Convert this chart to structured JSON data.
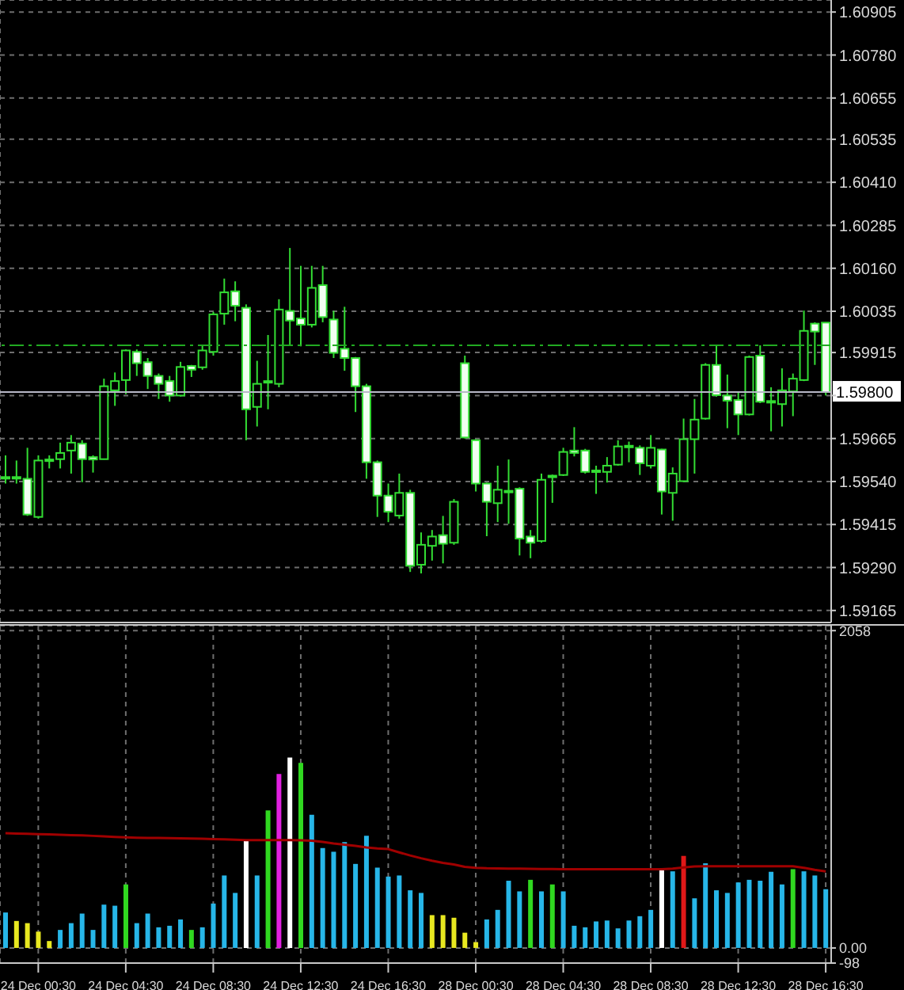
{
  "chart_data": [
    {
      "type": "candlestick",
      "color": "#33dd33",
      "grid": true,
      "tick_labels": "y",
      "categories": [
        null,
        null,
        null,
        null,
        null,
        null,
        null,
        null,
        null,
        null,
        null,
        null,
        null,
        null,
        null,
        null,
        null,
        null,
        null,
        null,
        null,
        null,
        null,
        null,
        null,
        null,
        null,
        null,
        null,
        null,
        null,
        null,
        null,
        null,
        null,
        null,
        null,
        null,
        null,
        null,
        null,
        null,
        null,
        null,
        null,
        null,
        null,
        null,
        null,
        null,
        null,
        null,
        null,
        null,
        null,
        null,
        null,
        null,
        null,
        null,
        null,
        null,
        null,
        null,
        null,
        null,
        null,
        null,
        null,
        null,
        null,
        null,
        null,
        null,
        null,
        null
      ],
      "ohlc": [
        [
          1.59551,
          1.59616,
          1.59534,
          1.59553
        ],
        [
          1.59551,
          1.59601,
          1.59534,
          1.59553
        ],
        [
          1.59548,
          1.59638,
          1.5944,
          1.59444
        ],
        [
          1.59437,
          1.59616,
          1.59432,
          1.59601
        ],
        [
          1.59601,
          1.59616,
          1.59578,
          1.59604
        ],
        [
          1.59605,
          1.59653,
          1.59578,
          1.59623
        ],
        [
          1.5963,
          1.59675,
          1.59563,
          1.59653
        ],
        [
          1.5965,
          1.5966,
          1.59538,
          1.59605
        ],
        [
          1.59611,
          1.59616,
          1.59566,
          1.59604
        ],
        [
          1.59605,
          1.59839,
          1.59604,
          1.59817
        ],
        [
          1.59805,
          1.59857,
          1.5976,
          1.59832
        ],
        [
          1.59835,
          1.59924,
          1.59794,
          1.59921
        ],
        [
          1.59917,
          1.59924,
          1.59847,
          1.59884
        ],
        [
          1.59887,
          1.59899,
          1.59809,
          1.59847
        ],
        [
          1.59847,
          1.59854,
          1.5978,
          1.59824
        ],
        [
          1.59832,
          1.59847,
          1.59772,
          1.5979
        ],
        [
          1.5979,
          1.59888,
          1.59787,
          1.59873
        ],
        [
          1.59876,
          1.59879,
          1.59844,
          1.59865
        ],
        [
          1.59872,
          1.59936,
          1.59865,
          1.59921
        ],
        [
          1.59917,
          1.60033,
          1.59906,
          1.60026
        ],
        [
          1.60028,
          1.6013,
          1.59996,
          1.6009
        ],
        [
          1.60093,
          1.60122,
          1.60006,
          1.60051
        ],
        [
          1.60045,
          1.60055,
          1.5966,
          1.5975
        ],
        [
          1.59757,
          1.59891,
          1.597,
          1.59824
        ],
        [
          1.59829,
          1.59966,
          1.5975,
          1.59832
        ],
        [
          1.59824,
          1.6007,
          1.59814,
          1.6004
        ],
        [
          1.60036,
          1.60219,
          1.59936,
          1.60008
        ],
        [
          1.60014,
          1.60167,
          1.59933,
          1.59996
        ],
        [
          1.59996,
          1.60167,
          1.59988,
          1.60103
        ],
        [
          1.60111,
          1.60167,
          1.60003,
          1.60018
        ],
        [
          1.60011,
          1.60036,
          1.59899,
          1.59914
        ],
        [
          1.59926,
          1.60048,
          1.59862,
          1.59899
        ],
        [
          1.59899,
          1.59902,
          1.59742,
          1.59817
        ],
        [
          1.59817,
          1.59824,
          1.59548,
          1.59596
        ],
        [
          1.59596,
          1.59601,
          1.59437,
          1.59499
        ],
        [
          1.59499,
          1.59534,
          1.59422,
          1.59452
        ],
        [
          1.59441,
          1.59563,
          1.59432,
          1.59507
        ],
        [
          1.59507,
          1.59516,
          1.59277,
          1.59295
        ],
        [
          1.59298,
          1.59392,
          1.59273,
          1.59356
        ],
        [
          1.59353,
          1.59399,
          1.5931,
          1.5938
        ],
        [
          1.59384,
          1.5944,
          1.59302,
          1.59359
        ],
        [
          1.59362,
          1.59489,
          1.59356,
          1.59481
        ],
        [
          1.59884,
          1.59906,
          1.59665,
          1.59668
        ],
        [
          1.5966,
          1.59663,
          1.59511,
          1.59534
        ],
        [
          1.59534,
          1.59537,
          1.59381,
          1.59481
        ],
        [
          1.59477,
          1.59586,
          1.59422,
          1.59516
        ],
        [
          1.59513,
          1.59604,
          1.59417,
          1.5951
        ],
        [
          1.59519,
          1.59523,
          1.59325,
          1.59374
        ],
        [
          1.5938,
          1.59399,
          1.59317,
          1.59362
        ],
        [
          1.59367,
          1.59563,
          1.59362,
          1.59545
        ],
        [
          1.59553,
          1.5956,
          1.59478,
          1.59557
        ],
        [
          1.59559,
          1.59638,
          1.59556,
          1.59626
        ],
        [
          1.5963,
          1.59698,
          1.59613,
          1.59623
        ],
        [
          1.5963,
          1.59635,
          1.59563,
          1.59568
        ],
        [
          1.59572,
          1.59586,
          1.59504,
          1.59569
        ],
        [
          1.59568,
          1.59611,
          1.59537,
          1.59586
        ],
        [
          1.59589,
          1.5966,
          1.59586,
          1.59642
        ],
        [
          1.59644,
          1.59656,
          1.59596,
          1.59641
        ],
        [
          1.59638,
          1.59645,
          1.59559,
          1.59593
        ],
        [
          1.59586,
          1.59675,
          1.59578,
          1.59638
        ],
        [
          1.59633,
          1.59635,
          1.59444,
          1.59511
        ],
        [
          1.59507,
          1.59581,
          1.59426,
          1.59563
        ],
        [
          1.59541,
          1.59723,
          1.59538,
          1.59663
        ],
        [
          1.59663,
          1.5978,
          1.59563,
          1.5972
        ],
        [
          1.59723,
          1.59884,
          1.5972,
          1.59879
        ],
        [
          1.59879,
          1.59936,
          1.59787,
          1.59791
        ],
        [
          1.5979,
          1.59851,
          1.59695,
          1.59775
        ],
        [
          1.59777,
          1.59802,
          1.59675,
          1.59735
        ],
        [
          1.59735,
          1.59906,
          1.59732,
          1.59902
        ],
        [
          1.59906,
          1.59936,
          1.59768,
          1.59772
        ],
        [
          1.59774,
          1.59814,
          1.59686,
          1.59771
        ],
        [
          1.59765,
          1.59869,
          1.597,
          1.59805
        ],
        [
          1.59802,
          1.59854,
          1.5973,
          1.59839
        ],
        [
          1.59835,
          1.60037,
          1.59832,
          1.59978
        ],
        [
          1.59999,
          1.60003,
          1.59879,
          1.59976
        ],
        [
          1.60002,
          1.60003,
          1.5979,
          1.598
        ]
      ],
      "ylim": [
        1.5913,
        1.6094
      ],
      "yticks": [
        1.59165,
        {
          "value": 1.5929,
          "label": "1.59290"
        },
        1.59415,
        {
          "value": 1.5954,
          "label": "1.59540"
        },
        1.59665,
        {
          "value": 1.5979,
          "label": null
        },
        1.59915,
        1.60035,
        {
          "value": 1.6016,
          "label": "1.60160"
        },
        1.60285,
        {
          "value": 1.6041,
          "label": "1.60410"
        },
        1.60535,
        1.60655,
        {
          "value": 1.6078,
          "label": "1.60780"
        },
        1.60905
      ],
      "ref_lines": [
        {
          "axis": "y",
          "value": 1.59936,
          "color": "#22aa22",
          "line_style": "dashed"
        },
        {
          "axis": "y",
          "value": 1.598,
          "label": "1.59800",
          "color": "#b8b8c8"
        }
      ]
    },
    {
      "type": "bar",
      "grid": true,
      "categories": [
        null,
        null,
        null,
        "24 Dec 00:30",
        null,
        null,
        null,
        null,
        null,
        null,
        null,
        "24 Dec 04:30",
        null,
        null,
        null,
        null,
        null,
        null,
        null,
        "24 Dec 08:30",
        null,
        null,
        null,
        null,
        null,
        null,
        null,
        "24 Dec 12:30",
        null,
        null,
        null,
        null,
        null,
        null,
        null,
        "24 Dec 16:30",
        null,
        null,
        null,
        null,
        null,
        null,
        null,
        "28 Dec 00:30",
        null,
        null,
        null,
        null,
        null,
        null,
        null,
        "28 Dec 04:30",
        null,
        null,
        null,
        null,
        null,
        null,
        null,
        "28 Dec 08:30",
        null,
        null,
        null,
        null,
        null,
        null,
        null,
        "28 Dec 12:30",
        null,
        null,
        null,
        null,
        null,
        null,
        null,
        "28 Dec 16:30"
      ],
      "series": [
        {
          "type": "bar",
          "values": [
            230,
            175,
            161,
            106,
            45,
            117,
            161,
            223,
            117,
            281,
            274,
            412,
            161,
            223,
            134,
            144,
            185,
            117,
            134,
            288,
            470,
            357,
            693,
            470,
            892,
            1128,
            1235,
            1200,
            864,
            648,
            624,
            686,
            545,
            727,
            521,
            463,
            470,
            374,
            357,
            213,
            213,
            196,
            99,
            38,
            185,
            247,
            436,
            367,
            442,
            367,
            412,
            367,
            144,
            134,
            172,
            178,
            127,
            178,
            206,
            247,
            504,
            497,
            597,
            322,
            549,
            374,
            357,
            425,
            442,
            436,
            494,
            412,
            511,
            497,
            470,
            381
          ],
          "colors": [
            "#27b6e8",
            "#e8e820",
            "#e8e820",
            "#e8e820",
            "#e8e820",
            "#27b6e8",
            "#27b6e8",
            "#27b6e8",
            "#27b6e8",
            "#27b6e8",
            "#27b6e8",
            "#30d820",
            "#27b6e8",
            "#27b6e8",
            "#27b6e8",
            "#27b6e8",
            "#27b6e8",
            "#30d820",
            "#27b6e8",
            "#27b6e8",
            "#27b6e8",
            "#27b6e8",
            "#ffffff",
            "#27b6e8",
            "#30d820",
            "#e020e0",
            "#ffffff",
            "#30d820",
            "#27b6e8",
            "#27b6e8",
            "#27b6e8",
            "#27b6e8",
            "#27b6e8",
            "#27b6e8",
            "#27b6e8",
            "#27b6e8",
            "#27b6e8",
            "#27b6e8",
            "#27b6e8",
            "#e8e820",
            "#e8e820",
            "#e8e820",
            "#e8e820",
            "#e8e820",
            "#27b6e8",
            "#27b6e8",
            "#27b6e8",
            "#27b6e8",
            "#30d820",
            "#27b6e8",
            "#30d820",
            "#27b6e8",
            "#27b6e8",
            "#27b6e8",
            "#27b6e8",
            "#27b6e8",
            "#27b6e8",
            "#27b6e8",
            "#27b6e8",
            "#27b6e8",
            "#ffffff",
            "#27b6e8",
            "#e01818",
            "#27b6e8",
            "#27b6e8",
            "#27b6e8",
            "#27b6e8",
            "#27b6e8",
            "#27b6e8",
            "#27b6e8",
            "#27b6e8",
            "#27b6e8",
            "#30d820",
            "#27b6e8",
            "#27b6e8",
            "#27b6e8"
          ]
        },
        {
          "type": "line",
          "color": "#a00000",
          "values": [
            744,
            742,
            740,
            738,
            736,
            734,
            732,
            730,
            727,
            724,
            720,
            717,
            715,
            714,
            713,
            712,
            711,
            710,
            708,
            706,
            704,
            702,
            700,
            700,
            700,
            700,
            700,
            698,
            695,
            688,
            678,
            670,
            662,
            652,
            645,
            641,
            620,
            600,
            582,
            566,
            552,
            541,
            526,
            520,
            517,
            516,
            515,
            514,
            513,
            512,
            512,
            511,
            511,
            511,
            511,
            511,
            511,
            511,
            511,
            511,
            511,
            515,
            522,
            528,
            530,
            530,
            530,
            530,
            530,
            530,
            530,
            530,
            530,
            520,
            507,
            497
          ]
        }
      ],
      "ylim": [
        -98,
        2090
      ],
      "yticks": [
        -98,
        {
          "value": 0,
          "label": "0.00"
        },
        2058
      ]
    }
  ]
}
